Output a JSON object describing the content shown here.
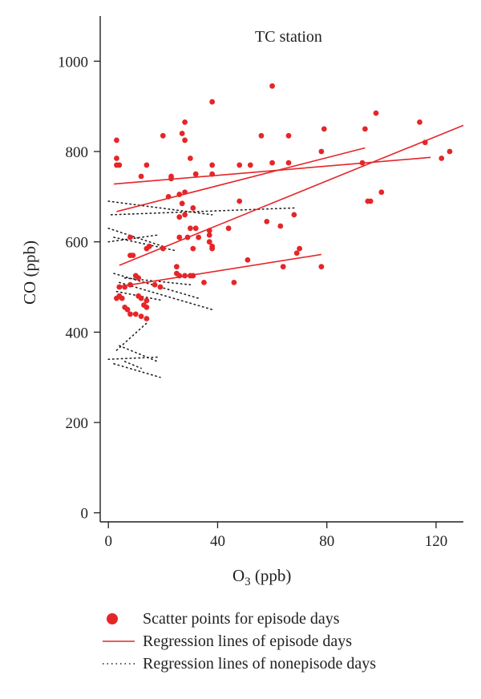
{
  "chart_data": {
    "type": "scatter",
    "annotation": "TC station",
    "xlabel_main": "O",
    "xlabel_sub": "3",
    "xlabel_unit": " (ppb)",
    "ylabel": "CO (ppb)",
    "xlim": [
      -3,
      130
    ],
    "ylim": [
      -20,
      1100
    ],
    "x_ticks": [
      0,
      40,
      80,
      120
    ],
    "y_ticks": [
      0,
      200,
      400,
      600,
      800,
      1000
    ],
    "colors": {
      "episode": "#e52629",
      "nonepisode": "#231f20",
      "axis": "#231f20"
    },
    "episode_points": [
      [
        3,
        825
      ],
      [
        3,
        785
      ],
      [
        3,
        770
      ],
      [
        4,
        770
      ],
      [
        14,
        770
      ],
      [
        12,
        745
      ],
      [
        23,
        745
      ],
      [
        23,
        740
      ],
      [
        22,
        700
      ],
      [
        26,
        705
      ],
      [
        28,
        710
      ],
      [
        20,
        835
      ],
      [
        28,
        865
      ],
      [
        27,
        840
      ],
      [
        28,
        825
      ],
      [
        30,
        785
      ],
      [
        38,
        910
      ],
      [
        38,
        770
      ],
      [
        38,
        750
      ],
      [
        32,
        750
      ],
      [
        48,
        770
      ],
      [
        52,
        770
      ],
      [
        56,
        835
      ],
      [
        60,
        945
      ],
      [
        66,
        835
      ],
      [
        66,
        775
      ],
      [
        60,
        775
      ],
      [
        79,
        850
      ],
      [
        78,
        800
      ],
      [
        94,
        850
      ],
      [
        98,
        885
      ],
      [
        93,
        775
      ],
      [
        95,
        690
      ],
      [
        96,
        690
      ],
      [
        100,
        710
      ],
      [
        114,
        865
      ],
      [
        116,
        820
      ],
      [
        122,
        785
      ],
      [
        125,
        800
      ],
      [
        27,
        685
      ],
      [
        28,
        660
      ],
      [
        31,
        675
      ],
      [
        26,
        655
      ],
      [
        30,
        630
      ],
      [
        32,
        630
      ],
      [
        33,
        610
      ],
      [
        37,
        625
      ],
      [
        37,
        615
      ],
      [
        29,
        610
      ],
      [
        26,
        610
      ],
      [
        37,
        600
      ],
      [
        38,
        590
      ],
      [
        38,
        585
      ],
      [
        31,
        585
      ],
      [
        44,
        630
      ],
      [
        48,
        690
      ],
      [
        58,
        645
      ],
      [
        63,
        635
      ],
      [
        68,
        660
      ],
      [
        70,
        585
      ],
      [
        69,
        575
      ],
      [
        51,
        560
      ],
      [
        64,
        545
      ],
      [
        78,
        545
      ],
      [
        46,
        510
      ],
      [
        35,
        510
      ],
      [
        25,
        545
      ],
      [
        25,
        530
      ],
      [
        26,
        525
      ],
      [
        28,
        525
      ],
      [
        30,
        525
      ],
      [
        31,
        525
      ],
      [
        8,
        610
      ],
      [
        8,
        570
      ],
      [
        9,
        570
      ],
      [
        14,
        585
      ],
      [
        15,
        590
      ],
      [
        20,
        585
      ],
      [
        10,
        525
      ],
      [
        11,
        520
      ],
      [
        8,
        505
      ],
      [
        6,
        500
      ],
      [
        4,
        500
      ],
      [
        4,
        480
      ],
      [
        3,
        475
      ],
      [
        5,
        475
      ],
      [
        11,
        480
      ],
      [
        12,
        475
      ],
      [
        14,
        470
      ],
      [
        13,
        460
      ],
      [
        14,
        455
      ],
      [
        6,
        455
      ],
      [
        7,
        450
      ],
      [
        8,
        440
      ],
      [
        10,
        440
      ],
      [
        12,
        435
      ],
      [
        14,
        430
      ],
      [
        17,
        505
      ],
      [
        19,
        500
      ]
    ],
    "episode_lines": [
      [
        [
          2,
          728
        ],
        [
          118,
          787
        ]
      ],
      [
        [
          3,
          667
        ],
        [
          94,
          808
        ]
      ],
      [
        [
          4,
          548
        ],
        [
          130,
          858
        ]
      ],
      [
        [
          3,
          500
        ],
        [
          78,
          572
        ]
      ]
    ],
    "nonepisode_lines": [
      [
        [
          0,
          690
        ],
        [
          38,
          660
        ]
      ],
      [
        [
          1,
          660
        ],
        [
          68,
          675
        ]
      ],
      [
        [
          0,
          630
        ],
        [
          20,
          590
        ]
      ],
      [
        [
          2,
          610
        ],
        [
          25,
          580
        ]
      ],
      [
        [
          0,
          600
        ],
        [
          18,
          615
        ]
      ],
      [
        [
          2,
          530
        ],
        [
          33,
          475
        ]
      ],
      [
        [
          4,
          510
        ],
        [
          38,
          450
        ]
      ],
      [
        [
          6,
          520
        ],
        [
          30,
          505
        ]
      ],
      [
        [
          3,
          490
        ],
        [
          20,
          470
        ]
      ],
      [
        [
          4,
          370
        ],
        [
          18,
          335
        ]
      ],
      [
        [
          3,
          360
        ],
        [
          14,
          420
        ]
      ],
      [
        [
          0,
          340
        ],
        [
          19,
          345
        ]
      ],
      [
        [
          2,
          330
        ],
        [
          19,
          300
        ]
      ],
      [
        [
          6,
          335
        ],
        [
          12,
          320
        ]
      ]
    ],
    "legend": [
      {
        "kind": "dot",
        "label": "Scatter points for episode days"
      },
      {
        "kind": "solid",
        "label": "Regression lines of episode days"
      },
      {
        "kind": "dotted",
        "label": "Regression lines of nonepisode days"
      }
    ]
  }
}
